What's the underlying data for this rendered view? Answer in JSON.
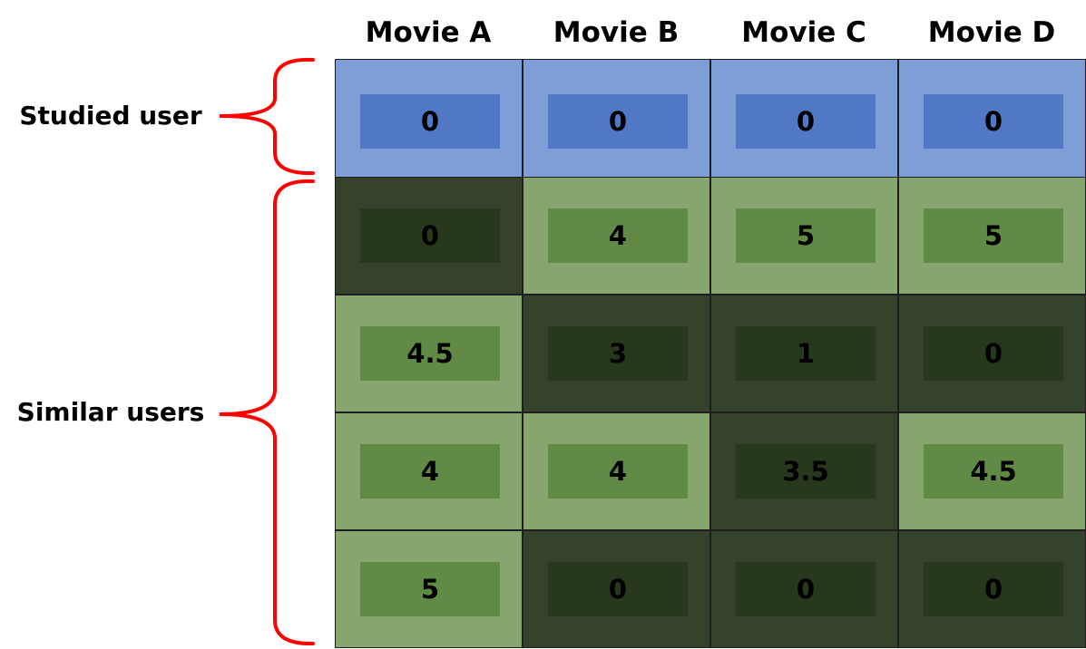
{
  "columns": [
    "Movie A",
    "Movie B",
    "Movie C",
    "Movie D"
  ],
  "groups": {
    "studied": "Studied user",
    "similar": "Similar users"
  },
  "rows": [
    {
      "group": "studied",
      "values": [
        "0",
        "0",
        "0",
        "0"
      ],
      "watched": [
        false,
        false,
        false,
        false
      ]
    },
    {
      "group": "similar",
      "values": [
        "0",
        "4",
        "5",
        "5"
      ],
      "watched": [
        false,
        true,
        true,
        true
      ]
    },
    {
      "group": "similar",
      "values": [
        "4.5",
        "3",
        "1",
        "0"
      ],
      "watched": [
        true,
        false,
        false,
        false
      ]
    },
    {
      "group": "similar",
      "values": [
        "4",
        "4",
        "3.5",
        "4.5"
      ],
      "watched": [
        true,
        true,
        false,
        true
      ]
    },
    {
      "group": "similar",
      "values": [
        "5",
        "0",
        "0",
        "0"
      ],
      "watched": [
        true,
        false,
        false,
        false
      ]
    }
  ],
  "colors": {
    "studied_outer": "#7f9dd6",
    "studied_inner": "#5178c5",
    "rated_outer": "#87a66f",
    "rated_inner": "#618b44",
    "unrated_outer": "#34422c",
    "unrated_inner": "#27381d",
    "brace": "#ff0000"
  }
}
